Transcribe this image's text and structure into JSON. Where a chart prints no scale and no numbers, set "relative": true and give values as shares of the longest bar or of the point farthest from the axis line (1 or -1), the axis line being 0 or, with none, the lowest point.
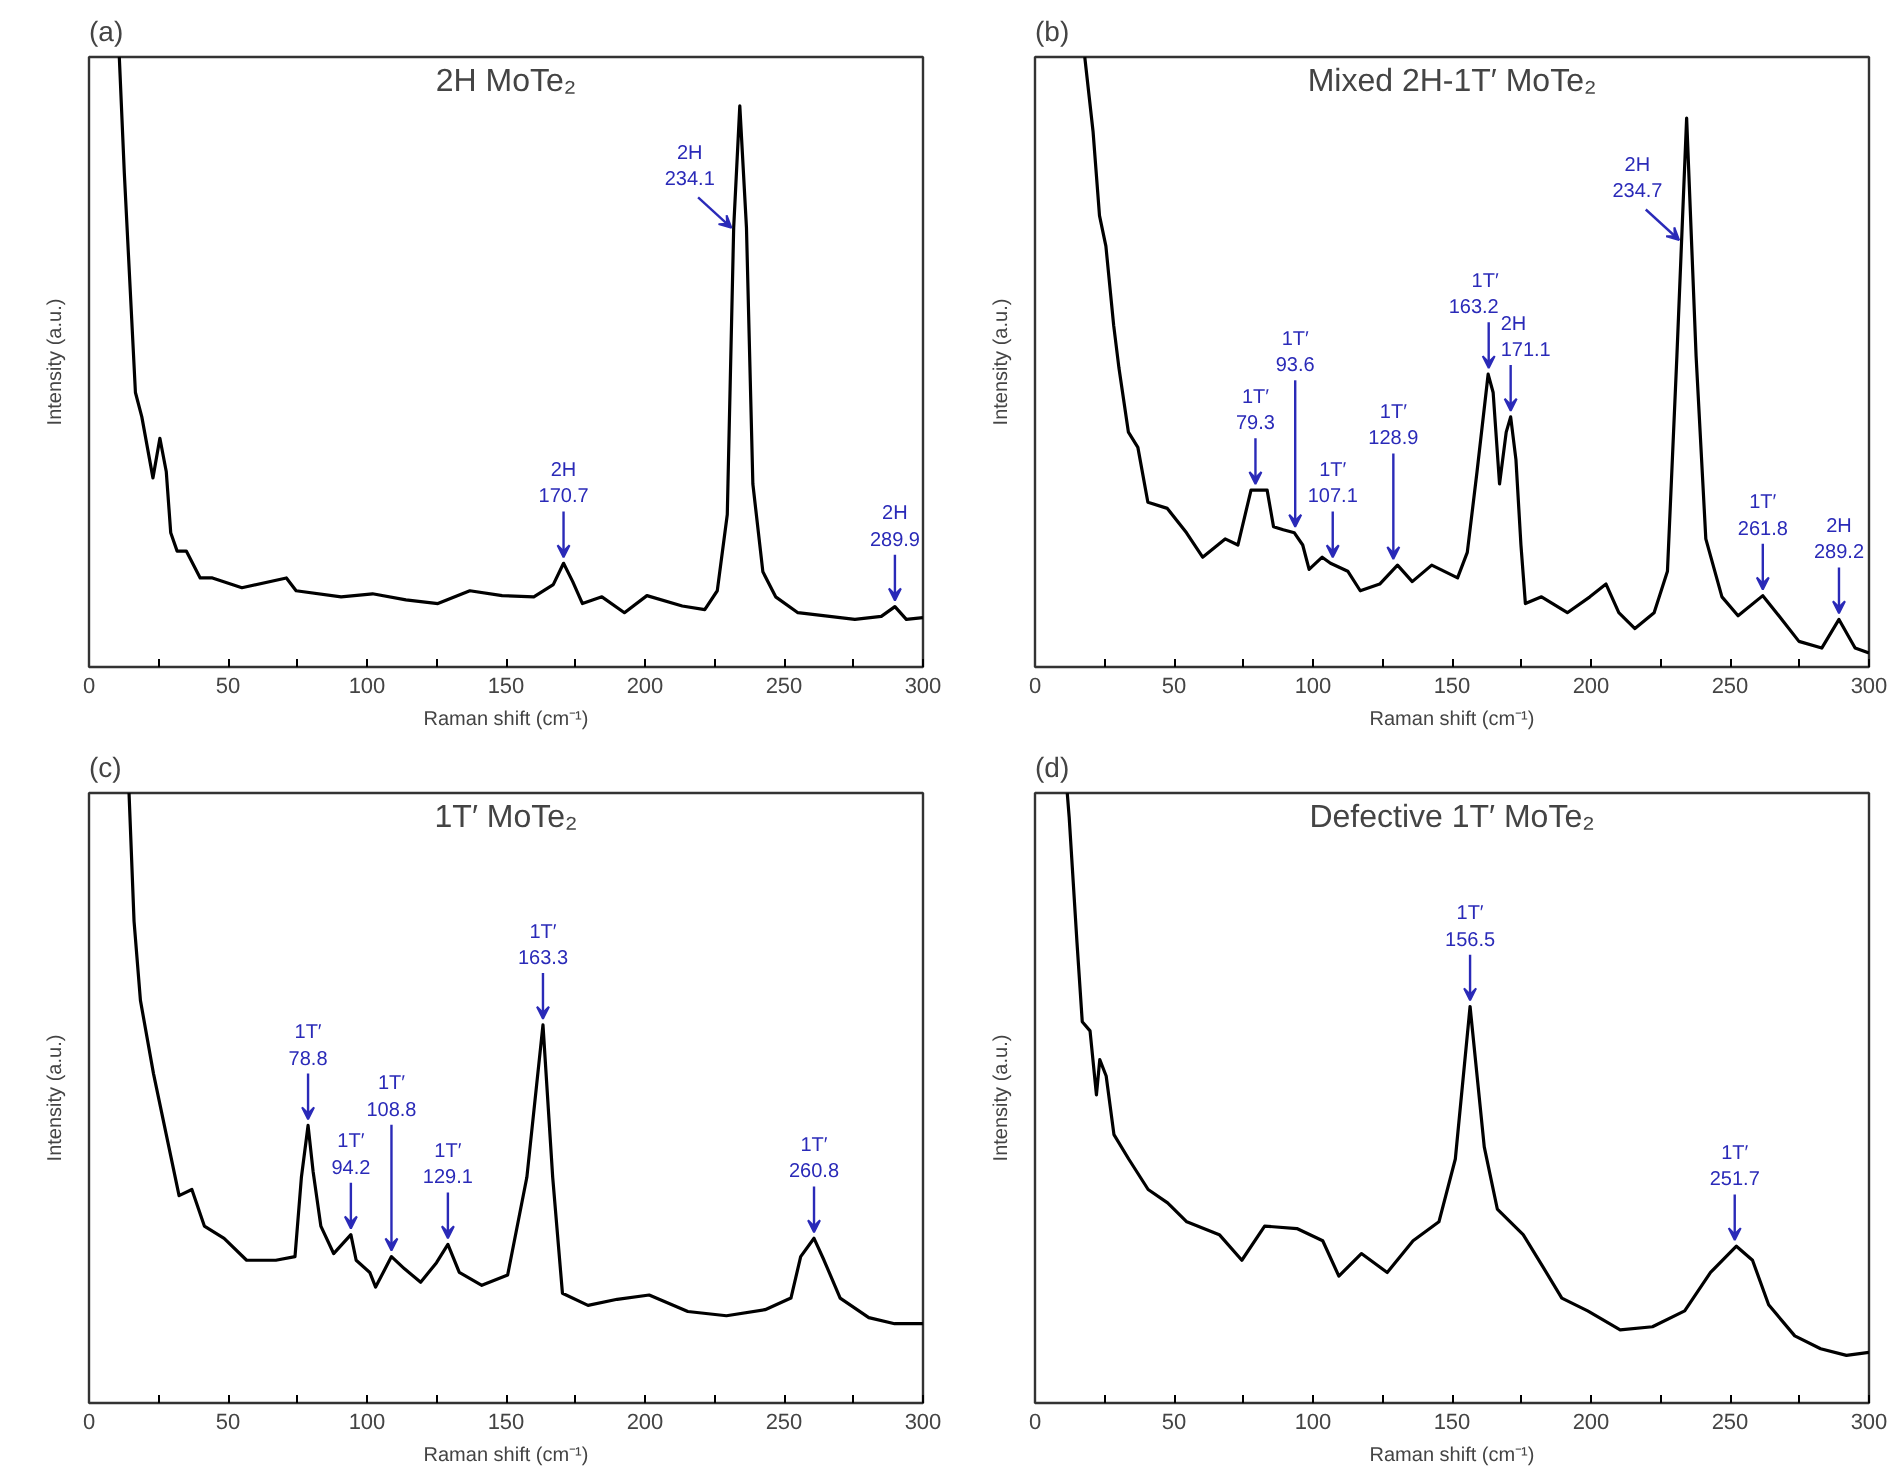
{
  "chart_data": [
    {
      "type": "line",
      "title": "2H MoTe₂",
      "xlabel": "Raman shift (cm⁻¹)",
      "ylabel": "Intensity (a.u.)",
      "relative": true,
      "grid": false,
      "tick_labels": "x",
      "xlim": [
        0,
        300
      ],
      "xticks": [
        0,
        {
          "value": 25,
          "label": null
        },
        50,
        {
          "value": 75,
          "label": null
        },
        100,
        {
          "value": 125,
          "label": null
        },
        150,
        {
          "value": 175,
          "label": null
        },
        200,
        {
          "value": 225,
          "label": null
        },
        250,
        {
          "value": 275,
          "label": null
        },
        300
      ],
      "series": [
        {
          "color": "#000000",
          "x": [
            10.9,
            12.7,
            16.7,
            19,
            23,
            25.5,
            27.8,
            29.4,
            31.7,
            35,
            40,
            44.4,
            55,
            71,
            74.5,
            90.7,
            102,
            114,
            125.5,
            137,
            148.6,
            160,
            167,
            170.7,
            174,
            177.5,
            184.5,
            192.6,
            200.7,
            213.4,
            221.5,
            226,
            229.6,
            231.9,
            234.1,
            236.5,
            238.8,
            242.4,
            247,
            255,
            266.4,
            275.5,
            285,
            289.9,
            294,
            300
          ],
          "values": [
            1.0,
            0.81,
            0.45,
            0.41,
            0.31,
            0.375,
            0.32,
            0.22,
            0.19,
            0.19,
            0.146,
            0.146,
            0.13,
            0.146,
            0.125,
            0.115,
            0.12,
            0.11,
            0.104,
            0.125,
            0.117,
            0.115,
            0.135,
            0.17,
            0.14,
            0.104,
            0.115,
            0.089,
            0.117,
            0.1,
            0.094,
            0.125,
            0.25,
            0.72,
            0.92,
            0.72,
            0.3,
            0.156,
            0.115,
            0.089,
            0.083,
            0.078,
            0.083,
            0.099,
            0.078,
            0.081
          ]
        }
      ],
      "annotations": [
        "(a)",
        {
          "text": "2H\n170.7",
          "x": 170.7,
          "y": 0.17
        },
        {
          "text": "2H\n234.1",
          "x": 234.1,
          "y": 0.92
        },
        {
          "text": "2H\n289.9",
          "x": 289.9,
          "y": 0.099
        }
      ]
    },
    {
      "type": "line",
      "title": "Mixed 2H-1T′ MoTe₂",
      "xlabel": "Raman shift (cm⁻¹)",
      "ylabel": "Intensity (a.u.)",
      "relative": true,
      "grid": false,
      "tick_labels": "x",
      "xlim": [
        0,
        300
      ],
      "xticks": [
        0,
        {
          "value": 25,
          "label": null
        },
        50,
        {
          "value": 75,
          "label": null
        },
        100,
        {
          "value": 125,
          "label": null
        },
        150,
        {
          "value": 175,
          "label": null
        },
        200,
        {
          "value": 225,
          "label": null
        },
        250,
        {
          "value": 275,
          "label": null
        },
        300
      ],
      "series": [
        {
          "color": "#000000",
          "x": [
            17.9,
            20.9,
            23.2,
            25.5,
            28.3,
            30.2,
            33.6,
            37,
            40.6,
            47.6,
            54.5,
            60.3,
            68.4,
            73,
            77.7,
            79.3,
            83.5,
            85.8,
            89.3,
            93.3,
            96.3,
            98.6,
            103.3,
            106.3,
            112.5,
            117,
            124,
            130.4,
            135.7,
            142.7,
            152,
            155.5,
            159,
            163,
            164.8,
            167.1,
            169.5,
            171.1,
            173,
            174.8,
            176.4,
            182.2,
            191.5,
            199.6,
            205.4,
            210,
            215.8,
            222.7,
            227.5,
            230.9,
            234.4,
            237.8,
            241.3,
            247.1,
            252.9,
            261.8,
            266.7,
            274.8,
            283,
            289.2,
            295,
            300
          ],
          "values": [
            1.0,
            0.877,
            0.74,
            0.69,
            0.56,
            0.49,
            0.385,
            0.36,
            0.27,
            0.26,
            0.22,
            0.18,
            0.21,
            0.2,
            0.29,
            0.29,
            0.29,
            0.23,
            0.225,
            0.22,
            0.2,
            0.16,
            0.18,
            0.17,
            0.157,
            0.125,
            0.136,
            0.167,
            0.14,
            0.167,
            0.146,
            0.188,
            0.32,
            0.48,
            0.45,
            0.3,
            0.385,
            0.41,
            0.34,
            0.2,
            0.104,
            0.115,
            0.089,
            0.115,
            0.136,
            0.089,
            0.063,
            0.089,
            0.157,
            0.51,
            0.9,
            0.51,
            0.21,
            0.115,
            0.084,
            0.117,
            0.089,
            0.042,
            0.031,
            0.078,
            0.031,
            0.023
          ]
        }
      ],
      "annotations": [
        "(b)",
        {
          "text": "1T′\n79.3",
          "x": 79.3,
          "y": 0.29
        },
        {
          "text": "1T′\n93.6",
          "x": 93.6,
          "y": 0.22
        },
        {
          "text": "1T′\n107.1",
          "x": 107.1,
          "y": 0.17
        },
        {
          "text": "1T′\n128.9",
          "x": 128.9,
          "y": 0.167
        },
        {
          "text": "1T′\n163.2",
          "x": 163.2,
          "y": 0.48
        },
        {
          "text": "2H\n171.1",
          "x": 171.1,
          "y": 0.41
        },
        {
          "text": "2H\n234.7",
          "x": 234.7,
          "y": 0.9
        },
        {
          "text": "1T′\n261.8",
          "x": 261.8,
          "y": 0.117
        },
        {
          "text": "2H\n289.2",
          "x": 289.2,
          "y": 0.078
        }
      ]
    },
    {
      "type": "line",
      "title": "1T′ MoTe₂",
      "xlabel": "Raman shift (cm⁻¹)",
      "ylabel": "Intensity (a.u.)",
      "relative": true,
      "grid": false,
      "tick_labels": "x",
      "xlim": [
        0,
        300
      ],
      "xticks": [
        0,
        {
          "value": 25,
          "label": null
        },
        50,
        {
          "value": 75,
          "label": null
        },
        100,
        {
          "value": 125,
          "label": null
        },
        150,
        {
          "value": 175,
          "label": null
        },
        200,
        {
          "value": 225,
          "label": null
        },
        250,
        {
          "value": 275,
          "label": null
        },
        300
      ],
      "series": [
        {
          "color": "#000000",
          "x": [
            14.4,
            16.2,
            18.5,
            23.2,
            27.8,
            32.4,
            37,
            41.5,
            48.6,
            56.7,
            67.2,
            74.1,
            76.4,
            78.8,
            80.6,
            83.4,
            88,
            94.2,
            96.1,
            101,
            103.1,
            108.8,
            113.5,
            119.3,
            125,
            129.1,
            133.2,
            141.3,
            150.6,
            157.5,
            163.3,
            166.8,
            170.3,
            179.5,
            190,
            201.5,
            215.4,
            229.3,
            243.2,
            252.5,
            256,
            260.8,
            264.4,
            270.2,
            280.5,
            289.8,
            300
          ],
          "values": [
            1.0,
            0.79,
            0.66,
            0.54,
            0.44,
            0.34,
            0.35,
            0.29,
            0.27,
            0.234,
            0.234,
            0.24,
            0.37,
            0.455,
            0.38,
            0.29,
            0.245,
            0.276,
            0.234,
            0.214,
            0.19,
            0.24,
            0.22,
            0.198,
            0.23,
            0.26,
            0.214,
            0.193,
            0.21,
            0.37,
            0.62,
            0.37,
            0.18,
            0.16,
            0.17,
            0.177,
            0.15,
            0.143,
            0.153,
            0.172,
            0.24,
            0.27,
            0.234,
            0.172,
            0.14,
            0.13,
            0.13
          ]
        }
      ],
      "annotations": [
        "(c)",
        {
          "text": "1T′\n78.8",
          "x": 78.8,
          "y": 0.455
        },
        {
          "text": "1T′\n94.2",
          "x": 94.2,
          "y": 0.276
        },
        {
          "text": "1T′\n108.8",
          "x": 108.8,
          "y": 0.24
        },
        {
          "text": "1T′\n129.1",
          "x": 129.1,
          "y": 0.26
        },
        {
          "text": "1T′\n163.3",
          "x": 163.3,
          "y": 0.62
        },
        {
          "text": "1T′\n260.8",
          "x": 260.8,
          "y": 0.27
        }
      ]
    },
    {
      "type": "line",
      "title": "Defective 1T′ MoTe₂",
      "xlabel": "Raman shift (cm⁻¹)",
      "ylabel": "Intensity (a.u.)",
      "relative": true,
      "grid": false,
      "tick_labels": "x",
      "xlim": [
        0,
        300
      ],
      "xticks": [
        0,
        {
          "value": 25,
          "label": null
        },
        50,
        {
          "value": 75,
          "label": null
        },
        100,
        {
          "value": 125,
          "label": null
        },
        150,
        {
          "value": 175,
          "label": null
        },
        200,
        {
          "value": 225,
          "label": null
        },
        250,
        {
          "value": 275,
          "label": null
        },
        300
      ],
      "series": [
        {
          "color": "#000000",
          "x": [
            11.6,
            12.3,
            15.1,
            17,
            19.8,
            22.1,
            23.3,
            25.6,
            28.4,
            33.7,
            40.7,
            47.7,
            54.6,
            66.3,
            74.4,
            82.6,
            94.2,
            103.5,
            109.3,
            117.4,
            126.7,
            136,
            145.3,
            151.2,
            156.5,
            161.6,
            166.3,
            175.6,
            182.6,
            189.5,
            198.8,
            210.5,
            222.1,
            233.7,
            243,
            252.3,
            258.1,
            263.9,
            273.3,
            282.6,
            291.9,
            300
          ],
          "values": [
            1.0,
            0.96,
            0.755,
            0.625,
            0.61,
            0.505,
            0.563,
            0.536,
            0.44,
            0.4,
            0.35,
            0.328,
            0.297,
            0.276,
            0.234,
            0.29,
            0.286,
            0.266,
            0.208,
            0.245,
            0.214,
            0.266,
            0.297,
            0.4,
            0.65,
            0.42,
            0.318,
            0.276,
            0.224,
            0.172,
            0.151,
            0.12,
            0.125,
            0.151,
            0.214,
            0.257,
            0.234,
            0.161,
            0.11,
            0.089,
            0.078,
            0.083
          ]
        }
      ],
      "annotations": [
        "(d)",
        {
          "text": "1T′\n156.5",
          "x": 156.5,
          "y": 0.65
        },
        {
          "text": "1T′\n251.7",
          "x": 251.7,
          "y": 0.257
        }
      ]
    }
  ]
}
